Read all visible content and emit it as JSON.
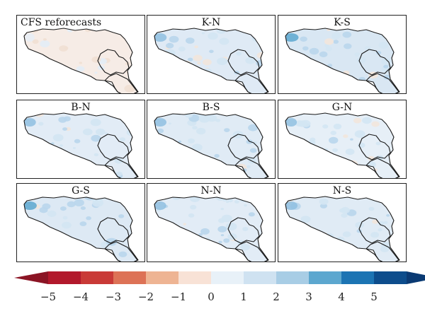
{
  "figure": {
    "panels": [
      {
        "label": "CFS reforecasts",
        "label_align": "left",
        "fill": "#f6ece6",
        "blue_intensity": 0.12
      },
      {
        "label": "K-N",
        "label_align": "center",
        "fill": "#dfeaf5",
        "blue_intensity": 0.55
      },
      {
        "label": "K-S",
        "label_align": "center",
        "fill": "#d9e7f3",
        "blue_intensity": 0.75
      },
      {
        "label": "B-N",
        "label_align": "center",
        "fill": "#e2ecf6",
        "blue_intensity": 0.45
      },
      {
        "label": "B-S",
        "label_align": "center",
        "fill": "#e0ebf5",
        "blue_intensity": 0.5
      },
      {
        "label": "G-N",
        "label_align": "center",
        "fill": "#e6eff7",
        "blue_intensity": 0.35
      },
      {
        "label": "G-S",
        "label_align": "center",
        "fill": "#dde9f4",
        "blue_intensity": 0.65
      },
      {
        "label": "N-N",
        "label_align": "center",
        "fill": "#e2ecf6",
        "blue_intensity": 0.45
      },
      {
        "label": "N-S",
        "label_align": "center",
        "fill": "#e0ebf5",
        "blue_intensity": 0.5
      }
    ],
    "colorbar": {
      "ticks": [
        "−5",
        "−4",
        "−3",
        "−2",
        "−1",
        "0",
        "1",
        "2",
        "3",
        "4",
        "5"
      ],
      "colors": [
        "#b2182b",
        "#c93a37",
        "#dd7256",
        "#eeb493",
        "#f8e2d6",
        "#e8f1f8",
        "#cfe2f1",
        "#a8cde5",
        "#5ca7cf",
        "#1c74b3",
        "#0d4d8c"
      ],
      "under_color": "#8b1424",
      "over_color": "#0a3a73"
    }
  }
}
